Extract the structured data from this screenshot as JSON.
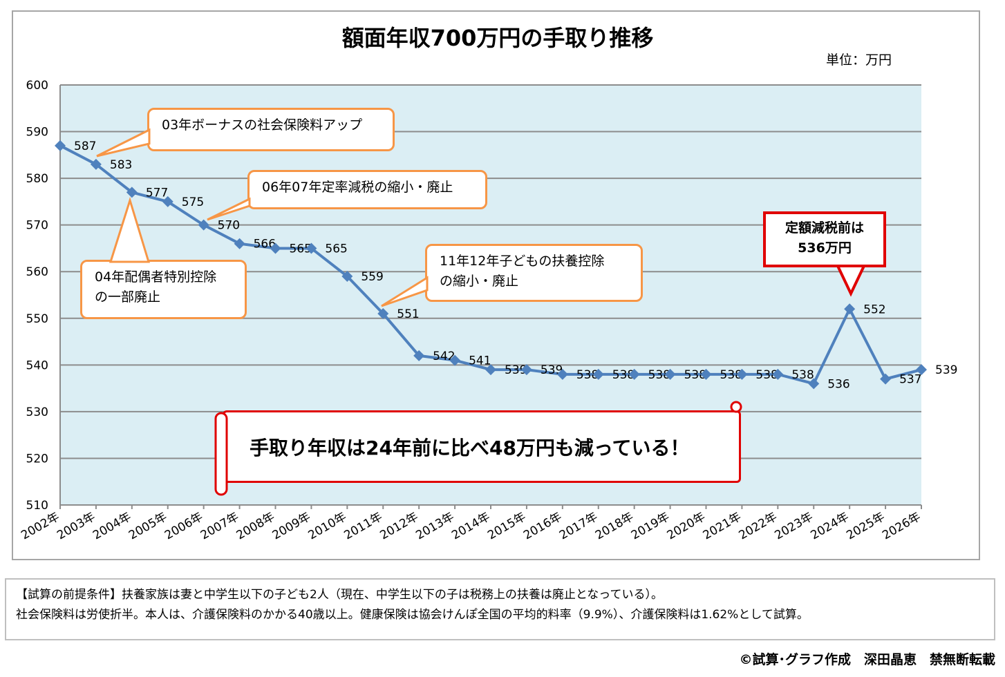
{
  "chart_data": {
    "type": "line",
    "title": "額面年収700万円の手取り推移",
    "unit_label": "単位：万円",
    "categories": [
      "2002年",
      "2003年",
      "2004年",
      "2005年",
      "2006年",
      "2007年",
      "2008年",
      "2009年",
      "2010年",
      "2011年",
      "2012年",
      "2013年",
      "2014年",
      "2015年",
      "2016年",
      "2017年",
      "2018年",
      "2019年",
      "2020年",
      "2021年",
      "2022年",
      "2023年",
      "2024年",
      "2025年",
      "2026年"
    ],
    "values": [
      587,
      583,
      577,
      575,
      570,
      566,
      565,
      565,
      559,
      551,
      542,
      541,
      539,
      539,
      538,
      538,
      538,
      538,
      538,
      538,
      538,
      536,
      552,
      537,
      539
    ],
    "ylim": [
      510,
      600
    ],
    "yticks": [
      510,
      520,
      530,
      540,
      550,
      560,
      570,
      580,
      590,
      600
    ],
    "grid": true,
    "colors": {
      "line": "#4f81bd",
      "plot_bg": "#dbeef4",
      "callout_border": "#f79646",
      "highlight": "#e00000"
    },
    "annotations": [
      {
        "text": "03年ボーナスの社会保険料アップ",
        "category": "2003年"
      },
      {
        "text": "06年07年定率減税の縮小・廃止",
        "category": "2006年"
      },
      {
        "text": "04年配偶者特別控除\nの一部廃止",
        "category": "2004年"
      },
      {
        "text": "11年12年子どもの扶養控除\nの縮小・廃止",
        "category": "2011年"
      },
      {
        "text": "定額減税前は\n536万円",
        "category": "2024年"
      }
    ],
    "banner": "手取り年収は24年前に比べ48万円も減っている！"
  },
  "footnote": {
    "line1": "【試算の前提条件】扶養家族は妻と中学生以下の子ども2人（現在、中学生以下の子は税務上の扶養は廃止となっている）。",
    "line2": "社会保険料は労使折半。本人は、介護保険料のかかる40歳以上。健康保険は協会けんぽ全国の平均的料率（9.9%）、介護保険料は1.62%として試算。"
  },
  "credit": "©試算･グラフ作成　深田晶恵　禁無断転載"
}
